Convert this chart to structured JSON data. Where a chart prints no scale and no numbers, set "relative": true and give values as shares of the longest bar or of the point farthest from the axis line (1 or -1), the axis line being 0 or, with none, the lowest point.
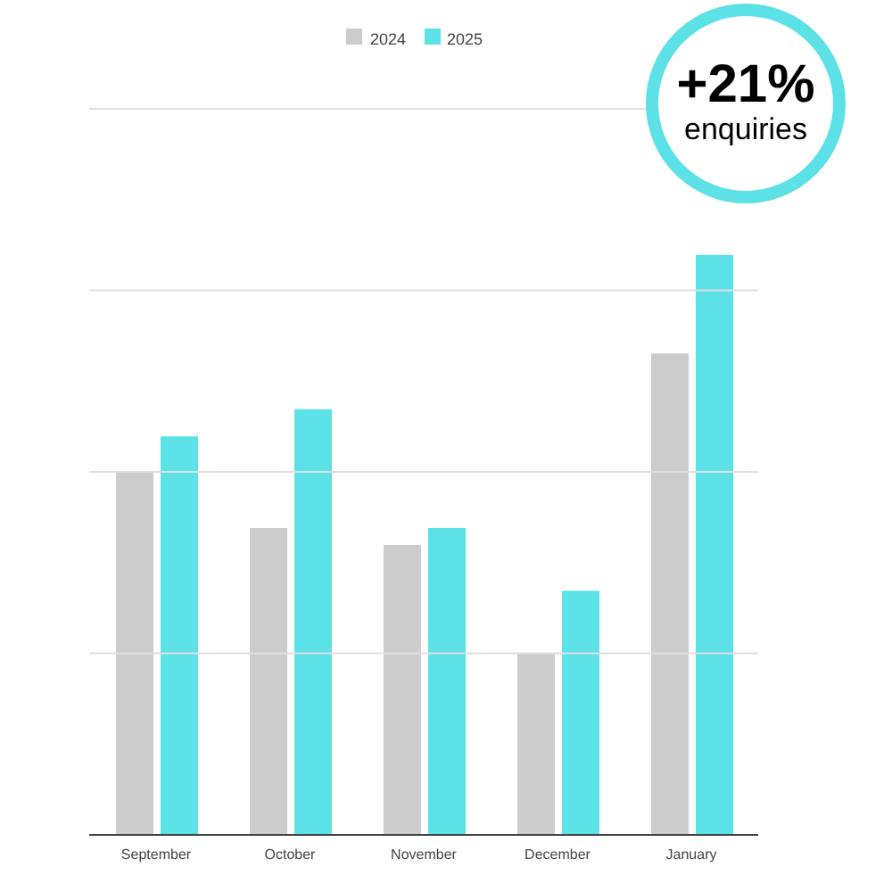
{
  "chart_data": {
    "type": "bar",
    "relative": true,
    "categories": [
      "September",
      "October",
      "November",
      "December",
      "January"
    ],
    "series": [
      {
        "name": "2024",
        "color": "#cccccc",
        "values": [
          0.626,
          0.529,
          0.5,
          0.313,
          0.83
        ]
      },
      {
        "name": "2025",
        "color": "#5ce1e6",
        "values": [
          0.687,
          0.734,
          0.529,
          0.421,
          1
        ]
      }
    ],
    "ref_lines": [
      {
        "axis": "y",
        "value": 0.313,
        "color": "#e0e0e0"
      },
      {
        "axis": "y",
        "value": 0.626,
        "color": "#e0e0e0"
      },
      {
        "axis": "y",
        "value": 0.939,
        "color": "#e0e0e0"
      },
      {
        "axis": "y",
        "value": 1.252,
        "color": "#e0e0e0"
      }
    ],
    "legend": "top",
    "annotations": [
      "+21%",
      "enquiries"
    ]
  }
}
